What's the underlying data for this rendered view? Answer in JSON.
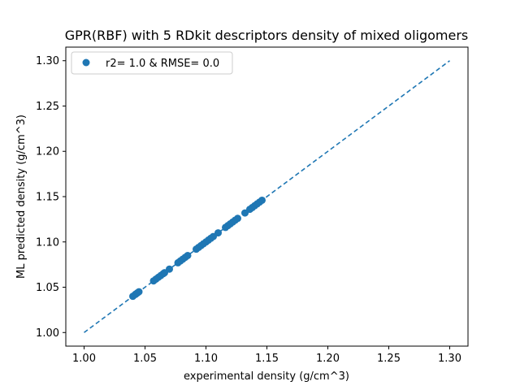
{
  "chart_data": {
    "type": "scatter",
    "title": "GPR(RBF) with 5 RDkit descriptors density of mixed oligomers",
    "xlabel": "experimental density (g/cm^3)",
    "ylabel": "ML predicted density (g/cm^3)",
    "xlim": [
      0.985,
      1.315
    ],
    "ylim": [
      0.985,
      1.315
    ],
    "xticks": [
      1.0,
      1.05,
      1.1,
      1.15,
      1.2,
      1.25,
      1.3
    ],
    "yticks": [
      1.0,
      1.05,
      1.1,
      1.15,
      1.2,
      1.25,
      1.3
    ],
    "xtick_labels": [
      "1.00",
      "1.05",
      "1.10",
      "1.15",
      "1.20",
      "1.25",
      "1.30"
    ],
    "ytick_labels": [
      "1.00",
      "1.05",
      "1.10",
      "1.15",
      "1.20",
      "1.25",
      "1.30"
    ],
    "grid": false,
    "legend_position": "upper-left",
    "series": [
      {
        "name": "r2= 1.0 & RMSE= 0.0",
        "marker": "circle",
        "color": "#1f77b4",
        "x": [
          1.04,
          1.042,
          1.043,
          1.044,
          1.045,
          1.057,
          1.059,
          1.061,
          1.063,
          1.065,
          1.066,
          1.07,
          1.077,
          1.079,
          1.081,
          1.083,
          1.085,
          1.092,
          1.094,
          1.096,
          1.098,
          1.1,
          1.102,
          1.104,
          1.106,
          1.11,
          1.116,
          1.118,
          1.12,
          1.122,
          1.124,
          1.126,
          1.132,
          1.136,
          1.138,
          1.14,
          1.142,
          1.144,
          1.146
        ],
        "y": [
          1.04,
          1.042,
          1.043,
          1.044,
          1.045,
          1.057,
          1.059,
          1.061,
          1.063,
          1.065,
          1.066,
          1.07,
          1.077,
          1.079,
          1.081,
          1.083,
          1.085,
          1.092,
          1.094,
          1.096,
          1.098,
          1.1,
          1.102,
          1.104,
          1.106,
          1.11,
          1.116,
          1.118,
          1.12,
          1.122,
          1.124,
          1.126,
          1.132,
          1.136,
          1.138,
          1.14,
          1.142,
          1.144,
          1.146
        ]
      }
    ],
    "reference_line": {
      "style": "dashed",
      "color": "#1f77b4",
      "x": [
        1.0,
        1.3
      ],
      "y": [
        1.0,
        1.3
      ]
    }
  }
}
